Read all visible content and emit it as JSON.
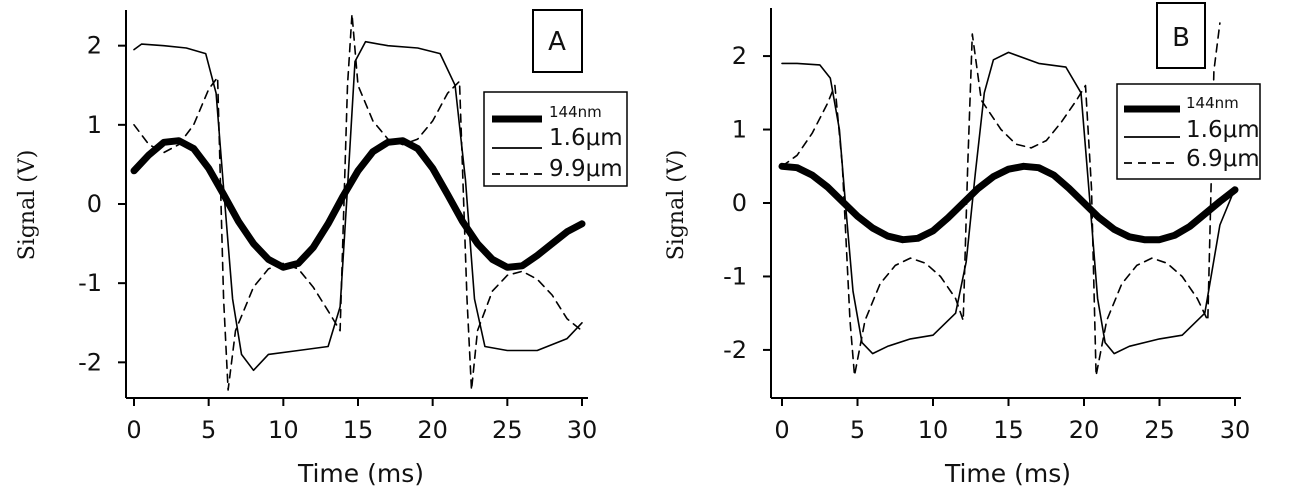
{
  "chart_data": [
    {
      "type": "line",
      "panel_label": "A",
      "xlabel": "Time (ms)",
      "ylabel": "Signal (V)",
      "xlim": [
        0,
        30
      ],
      "ylim": [
        -2.4,
        2.4
      ],
      "x_ticks": [
        0,
        5,
        10,
        15,
        20,
        25,
        30
      ],
      "y_ticks": [
        -2,
        -1,
        0,
        1,
        2
      ],
      "x_tick_labels": [
        "0",
        "5",
        "10",
        "15",
        "20",
        "25",
        "30"
      ],
      "y_tick_labels": [
        "-2",
        "-1",
        "0",
        "1",
        "2"
      ],
      "legend_position": "top-right",
      "series": [
        {
          "name": "144nm",
          "style": "thick-solid",
          "x": [
            0,
            1,
            2,
            3,
            4,
            5,
            6,
            7,
            8,
            9,
            10,
            11,
            12,
            13,
            14,
            15,
            16,
            17,
            18,
            19,
            20,
            21,
            22,
            23,
            24,
            25,
            26,
            27,
            28,
            29,
            30
          ],
          "y": [
            0.42,
            0.62,
            0.78,
            0.8,
            0.7,
            0.45,
            0.12,
            -0.22,
            -0.5,
            -0.7,
            -0.8,
            -0.75,
            -0.55,
            -0.25,
            0.1,
            0.42,
            0.66,
            0.78,
            0.8,
            0.7,
            0.45,
            0.12,
            -0.22,
            -0.5,
            -0.7,
            -0.8,
            -0.78,
            -0.65,
            -0.5,
            -0.35,
            -0.25
          ]
        },
        {
          "name": "1.6μm",
          "style": "thin-solid",
          "x": [
            0,
            0.5,
            2,
            3.5,
            4.8,
            5.5,
            6,
            6.6,
            7.2,
            8,
            9,
            11,
            13,
            13.8,
            14.3,
            14.8,
            15.5,
            17,
            19,
            20.5,
            21.5,
            22.2,
            22.8,
            23.5,
            25,
            27,
            29,
            30
          ],
          "y": [
            1.95,
            2.02,
            2.0,
            1.97,
            1.9,
            1.4,
            0.2,
            -1.2,
            -1.9,
            -2.1,
            -1.9,
            -1.85,
            -1.8,
            -1.3,
            0.2,
            1.8,
            2.05,
            2.0,
            1.97,
            1.9,
            1.5,
            0.3,
            -1.2,
            -1.8,
            -1.85,
            -1.85,
            -1.7,
            -1.5
          ]
        },
        {
          "name": "9.9μm",
          "style": "dashed",
          "x": [
            0,
            1,
            2,
            3,
            4,
            5,
            5.6,
            6.0,
            6.3,
            6.8,
            8,
            9,
            10,
            11,
            12,
            13,
            13.8,
            14.3,
            14.6,
            15.0,
            16,
            17,
            18,
            19,
            20,
            21,
            21.8,
            22.3,
            22.6,
            23,
            24,
            25,
            26,
            27,
            28,
            29,
            30
          ],
          "y": [
            1.0,
            0.75,
            0.65,
            0.75,
            1.0,
            1.45,
            1.6,
            -1.2,
            -2.35,
            -1.6,
            -1.05,
            -0.82,
            -0.75,
            -0.82,
            -1.05,
            -1.35,
            -1.6,
            1.5,
            2.4,
            1.5,
            1.05,
            0.82,
            0.75,
            0.82,
            1.05,
            1.4,
            1.55,
            -1.2,
            -2.35,
            -1.6,
            -1.1,
            -0.9,
            -0.85,
            -0.95,
            -1.15,
            -1.45,
            -1.6
          ]
        }
      ]
    },
    {
      "type": "line",
      "panel_label": "B",
      "xlabel": "Time (ms)",
      "ylabel": "Signal (V)",
      "xlim": [
        0,
        30
      ],
      "ylim": [
        -2.6,
        2.6
      ],
      "x_ticks": [
        0,
        5,
        10,
        15,
        20,
        25,
        30
      ],
      "y_ticks": [
        -2,
        -1,
        0,
        1,
        2
      ],
      "x_tick_labels": [
        "0",
        "5",
        "10",
        "15",
        "20",
        "25",
        "30"
      ],
      "y_tick_labels": [
        "-2",
        "-1",
        "0",
        "1",
        "2"
      ],
      "legend_position": "top-right",
      "series": [
        {
          "name": "144nm",
          "style": "thick-solid",
          "x": [
            0,
            1,
            2,
            3,
            4,
            5,
            6,
            7,
            8,
            9,
            10,
            11,
            12,
            13,
            14,
            15,
            16,
            17,
            18,
            19,
            20,
            21,
            22,
            23,
            24,
            25,
            26,
            27,
            28,
            29,
            30
          ],
          "y": [
            0.5,
            0.48,
            0.38,
            0.22,
            0.02,
            -0.18,
            -0.34,
            -0.45,
            -0.5,
            -0.48,
            -0.38,
            -0.2,
            0.0,
            0.2,
            0.36,
            0.46,
            0.5,
            0.48,
            0.38,
            0.2,
            0.0,
            -0.2,
            -0.36,
            -0.46,
            -0.5,
            -0.5,
            -0.44,
            -0.32,
            -0.15,
            0.02,
            0.18
          ]
        },
        {
          "name": "1.6μm",
          "style": "thin-solid",
          "x": [
            0,
            1,
            2.5,
            3.2,
            3.8,
            4.2,
            4.7,
            5.3,
            6,
            7,
            8.5,
            10,
            11.5,
            12.2,
            12.8,
            13.4,
            14,
            15,
            17,
            18.8,
            19.8,
            20.4,
            20.9,
            21.4,
            22,
            23,
            25,
            26.5,
            28,
            29,
            30
          ],
          "y": [
            1.9,
            1.9,
            1.88,
            1.7,
            1.0,
            0.0,
            -1.2,
            -1.9,
            -2.05,
            -1.95,
            -1.85,
            -1.8,
            -1.5,
            -0.8,
            0.4,
            1.5,
            1.95,
            2.05,
            1.9,
            1.85,
            1.5,
            0.0,
            -1.3,
            -1.9,
            -2.05,
            -1.95,
            -1.85,
            -1.8,
            -1.5,
            -0.3,
            0.2
          ]
        },
        {
          "name": "6.9μm",
          "style": "dashed",
          "x": [
            0,
            1,
            2,
            3,
            3.5,
            4.0,
            4.5,
            4.8,
            5.5,
            6.5,
            7.5,
            8.5,
            9.5,
            10.5,
            11.5,
            12.0,
            12.3,
            12.6,
            13.2,
            14.5,
            15.5,
            16.5,
            17.5,
            18.5,
            19.5,
            20.1,
            20.5,
            20.8,
            21.5,
            22.5,
            23.5,
            24.5,
            25.5,
            26.5,
            27.5,
            28.2,
            28.6,
            29.0
          ],
          "y": [
            0.5,
            0.65,
            0.95,
            1.35,
            1.6,
            0.5,
            -1.6,
            -2.35,
            -1.6,
            -1.1,
            -0.85,
            -0.75,
            -0.82,
            -1.0,
            -1.3,
            -1.6,
            0.5,
            2.3,
            1.4,
            1.0,
            0.8,
            0.75,
            0.85,
            1.1,
            1.4,
            1.6,
            0.2,
            -2.35,
            -1.6,
            -1.1,
            -0.85,
            -0.75,
            -0.82,
            -1.0,
            -1.3,
            -1.6,
            1.8,
            2.45
          ]
        }
      ]
    }
  ]
}
